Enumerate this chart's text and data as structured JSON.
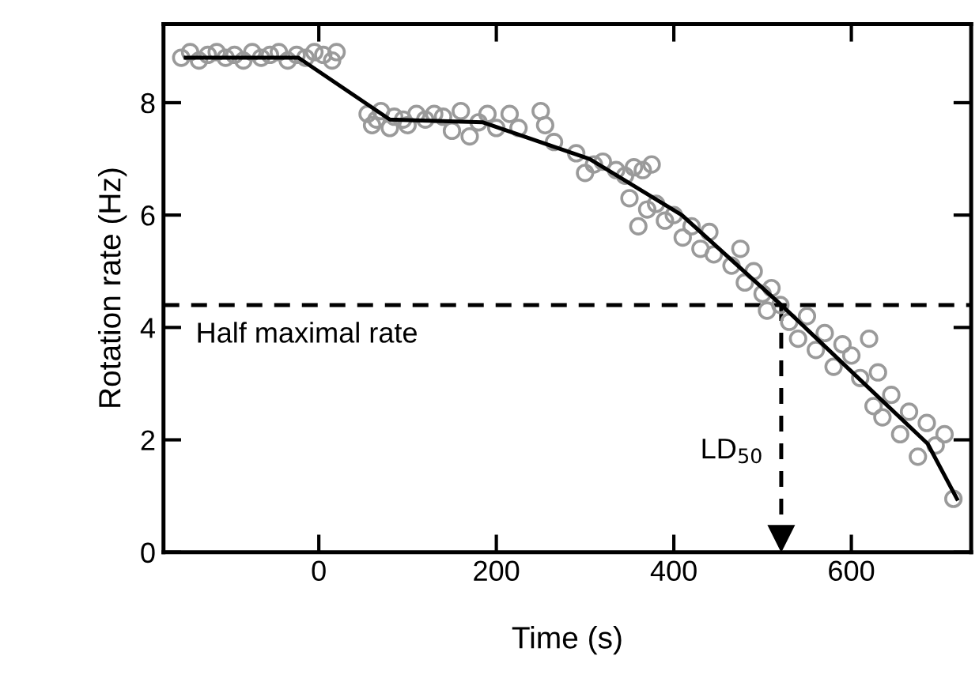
{
  "chart_data": {
    "type": "scatter",
    "xlabel": "Time (s)",
    "ylabel": "Rotation rate (Hz)",
    "xlim": [
      -175,
      735
    ],
    "ylim": [
      0,
      9.4
    ],
    "xticks": [
      0,
      200,
      400,
      600
    ],
    "yticks": [
      0,
      2,
      4,
      6,
      8
    ],
    "grid": false,
    "series": [
      {
        "marker": "circle",
        "color": "#9a9a9a",
        "x": [
          -155,
          -145,
          -135,
          -125,
          -115,
          -105,
          -95,
          -85,
          -75,
          -65,
          -55,
          -45,
          -35,
          -25,
          -15,
          -5,
          5,
          15,
          20,
          55,
          60,
          65,
          70,
          80,
          85,
          95,
          100,
          110,
          120,
          130,
          140,
          150,
          160,
          170,
          180,
          190,
          200,
          215,
          225,
          250,
          255,
          265,
          290,
          300,
          310,
          320,
          335,
          345,
          355,
          365,
          375,
          350,
          360,
          370,
          380,
          390,
          400,
          410,
          420,
          430,
          440,
          445,
          465,
          475,
          480,
          490,
          500,
          505,
          510,
          520,
          530,
          540,
          550,
          560,
          570,
          580,
          590,
          600,
          610,
          620,
          630,
          625,
          635,
          645,
          655,
          665,
          675,
          685,
          695,
          705,
          715
        ],
        "values": [
          8.8,
          8.9,
          8.75,
          8.85,
          8.9,
          8.8,
          8.85,
          8.75,
          8.9,
          8.8,
          8.85,
          8.9,
          8.75,
          8.85,
          8.8,
          8.9,
          8.85,
          8.75,
          8.9,
          7.8,
          7.6,
          7.7,
          7.85,
          7.55,
          7.75,
          7.7,
          7.6,
          7.8,
          7.7,
          7.8,
          7.75,
          7.5,
          7.85,
          7.4,
          7.65,
          7.8,
          7.55,
          7.8,
          7.55,
          7.85,
          7.6,
          7.3,
          7.1,
          6.75,
          6.9,
          6.95,
          6.8,
          6.7,
          6.85,
          6.8,
          6.9,
          6.3,
          5.8,
          6.1,
          6.2,
          5.9,
          6.0,
          5.6,
          5.8,
          5.4,
          5.7,
          5.3,
          5.1,
          5.4,
          4.8,
          5.0,
          4.6,
          4.3,
          4.7,
          4.4,
          4.1,
          3.8,
          4.2,
          3.6,
          3.9,
          3.3,
          3.7,
          3.5,
          3.1,
          3.8,
          3.2,
          2.6,
          2.4,
          2.8,
          2.1,
          2.5,
          1.7,
          2.3,
          1.9,
          2.1,
          0.95
        ]
      },
      {
        "type": "line",
        "color": "#000000",
        "marker": "none",
        "line_style": "solid",
        "x": [
          -150,
          -23,
          80,
          185,
          305,
          409,
          521,
          686,
          719
        ],
        "values": [
          8.8,
          8.8,
          7.7,
          7.65,
          7.0,
          6.0,
          4.4,
          1.93,
          0.95
        ]
      }
    ],
    "ref_lines": [
      {
        "axis": "y",
        "value": 4.4,
        "label": "Half maximal rate",
        "line_style": "dashed",
        "color": "#000000"
      },
      {
        "axis": "x",
        "value": 521,
        "label": "LD$_{50}$",
        "line_style": "dashed",
        "color": "#000000"
      }
    ]
  }
}
